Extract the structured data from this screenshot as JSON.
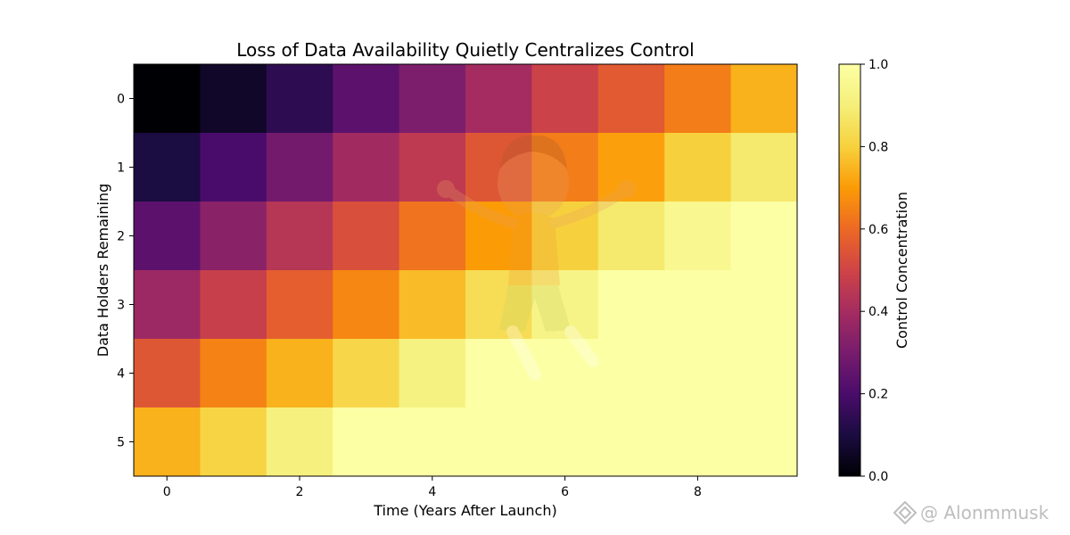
{
  "chart_data": {
    "type": "heatmap",
    "title": "Loss of Data Availability Quietly Centralizes Control",
    "xlabel": "Time (Years After Launch)",
    "ylabel": "Data Holders Remaining",
    "x_categories": [
      0,
      1,
      2,
      3,
      4,
      5,
      6,
      7,
      8,
      9
    ],
    "y_categories": [
      0,
      1,
      2,
      3,
      4,
      5
    ],
    "x_ticks": [
      0,
      2,
      4,
      6,
      8
    ],
    "y_ticks": [
      0,
      1,
      2,
      3,
      4,
      5
    ],
    "values": [
      [
        0.0,
        0.06,
        0.14,
        0.24,
        0.31,
        0.4,
        0.49,
        0.56,
        0.64,
        0.74
      ],
      [
        0.1,
        0.2,
        0.29,
        0.39,
        0.46,
        0.55,
        0.64,
        0.71,
        0.8,
        0.88
      ],
      [
        0.24,
        0.34,
        0.44,
        0.53,
        0.62,
        0.7,
        0.8,
        0.88,
        0.95,
        1.0
      ],
      [
        0.38,
        0.48,
        0.57,
        0.66,
        0.76,
        0.84,
        0.93,
        1.0,
        1.0,
        1.0
      ],
      [
        0.55,
        0.65,
        0.74,
        0.82,
        0.92,
        1.0,
        1.0,
        1.0,
        1.0,
        1.0
      ],
      [
        0.74,
        0.81,
        0.91,
        1.0,
        1.0,
        1.0,
        1.0,
        1.0,
        1.0,
        1.0
      ]
    ],
    "colormap": "inferno",
    "vmin": 0,
    "vmax": 1,
    "colorbar": {
      "label": "Control Concentration",
      "ticks": [
        "0.0",
        "0.2",
        "0.4",
        "0.6",
        "0.8",
        "1.0"
      ]
    },
    "grid": false
  },
  "watermark": {
    "text": "@ Alonmmusk",
    "icon": "diamond-logo-icon"
  },
  "overlay": {
    "description_icon": "cartoon-character-icon"
  }
}
